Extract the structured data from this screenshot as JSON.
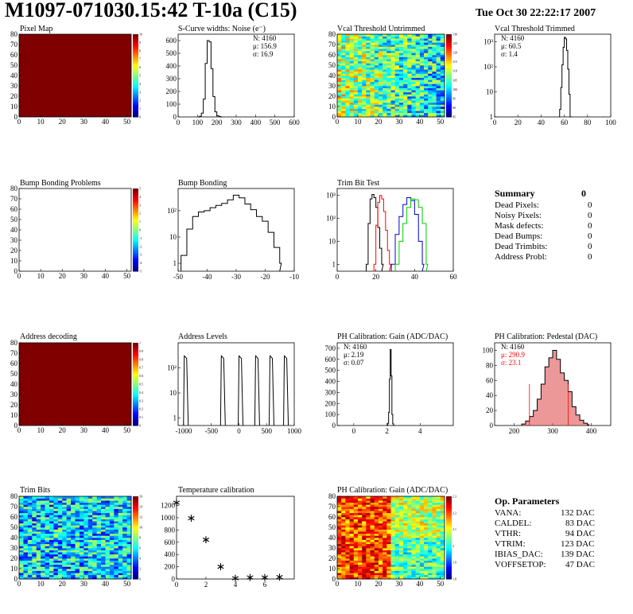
{
  "header": {
    "title": "M1097-071030.15:42 T-10a (C15)",
    "date": "Tue Oct 30 22:22:17 2007"
  },
  "colors": {
    "red": "#ff0000",
    "green": "#00cc00",
    "blue": "#0000cc",
    "fill_red": "#d44",
    "frame": "#000000"
  },
  "chart_data": [
    {
      "id": "pixel_map",
      "type": "heatmap",
      "title": "Pixel Map",
      "xlim": [
        0,
        52
      ],
      "ylim": [
        0,
        80
      ],
      "xticks": [
        0,
        10,
        20,
        30,
        40,
        50
      ],
      "yticks": [
        0,
        10,
        20,
        30,
        40,
        50,
        60,
        70,
        80
      ],
      "uniform_value": 10,
      "colorbar": {
        "range": [
          0,
          10
        ],
        "ticks": [
          "0",
          "1",
          "2",
          "3",
          "4",
          "5",
          "6",
          "7",
          "8",
          "9",
          "10"
        ]
      }
    },
    {
      "id": "scurve_noise",
      "type": "line",
      "title": "S-Curve widths: Noise (e⁻)",
      "xlim": [
        0,
        600
      ],
      "ylim": [
        0,
        650
      ],
      "xticks": [
        0,
        100,
        200,
        300,
        400,
        500,
        600
      ],
      "yticks": [
        0,
        100,
        200,
        300,
        400,
        500,
        600
      ],
      "stats": [
        "N: 4160",
        "μ: 156.9",
        "σ: 16.9"
      ],
      "series": [
        {
          "x": [
            100,
            110,
            120,
            130,
            140,
            150,
            160,
            170,
            180,
            190,
            200,
            210,
            220
          ],
          "y": [
            0,
            5,
            30,
            140,
            420,
            600,
            590,
            380,
            160,
            40,
            10,
            3,
            0
          ]
        }
      ]
    },
    {
      "id": "vcal_untrimmed",
      "type": "heatmap",
      "title": "Vcal Threshold Untrimmed",
      "xlim": [
        0,
        52
      ],
      "ylim": [
        0,
        80
      ],
      "xticks": [
        0,
        10,
        20,
        30,
        40,
        50
      ],
      "yticks": [
        0,
        10,
        20,
        30,
        40,
        50,
        60,
        70,
        80
      ],
      "colorbar": {
        "range": [
          85,
          130
        ],
        "ticks": [
          "85",
          "90",
          "95",
          "100",
          "105",
          "110",
          "115",
          "120",
          "125",
          "130"
        ]
      }
    },
    {
      "id": "vcal_trimmed",
      "type": "line",
      "title": "Vcal Threshold Trimmed",
      "xlim": [
        0,
        100
      ],
      "ylog": true,
      "ylim": [
        1,
        2000
      ],
      "xticks": [
        0,
        20,
        40,
        60,
        80,
        100
      ],
      "yticks": [
        "1",
        "10",
        "10²",
        "10³"
      ],
      "stats": [
        "N: 4160",
        "μ: 60.5",
        "σ: 1.4"
      ],
      "series": [
        {
          "x": [
            56,
            57,
            58,
            59,
            60,
            61,
            62,
            63,
            64,
            65
          ],
          "y": [
            2,
            15,
            120,
            600,
            1500,
            1300,
            450,
            80,
            8,
            1
          ]
        }
      ]
    },
    {
      "id": "bump_problems",
      "type": "heatmap",
      "title": "Bump Bonding Problems",
      "xlim": [
        0,
        52
      ],
      "ylim": [
        0,
        80
      ],
      "xticks": [
        0,
        10,
        20,
        30,
        40,
        50
      ],
      "yticks": [
        0,
        10,
        20,
        30,
        40,
        50,
        60,
        70,
        80
      ],
      "empty": true,
      "colorbar": {
        "range": [
          -5,
          5
        ],
        "ticks": [
          "-5",
          "-4",
          "-3",
          "-2",
          "-1",
          "0",
          "1",
          "2",
          "3",
          "4",
          "5"
        ]
      }
    },
    {
      "id": "bump_bonding",
      "type": "line",
      "title": "Bump Bonding",
      "xlim": [
        -50,
        -10
      ],
      "ylog": true,
      "ylim": [
        0.5,
        700
      ],
      "xticks": [
        -50,
        -40,
        -30,
        -20,
        -10
      ],
      "yticks": [
        "1",
        "10",
        "10²"
      ],
      "series": [
        {
          "x": [
            -49,
            -47,
            -45,
            -43,
            -41,
            -39,
            -37,
            -35,
            -33,
            -31,
            -29,
            -27,
            -25,
            -23,
            -21,
            -19,
            -17,
            -15
          ],
          "y": [
            2,
            20,
            60,
            90,
            100,
            130,
            160,
            190,
            260,
            390,
            310,
            180,
            110,
            60,
            40,
            15,
            4,
            1
          ]
        }
      ]
    },
    {
      "id": "trim_bit_test",
      "type": "line",
      "title": "Trim Bit Test",
      "xlim": [
        0,
        60
      ],
      "ylog": true,
      "ylim": [
        0.5,
        2000
      ],
      "xticks": [
        0,
        20,
        40,
        60
      ],
      "yticks": [
        "1",
        "10",
        "10²",
        "10³"
      ],
      "series": [
        {
          "color": "#000000",
          "x": [
            15,
            16,
            17,
            18,
            19,
            20,
            21,
            22,
            23
          ],
          "y": [
            1,
            60,
            700,
            1100,
            800,
            300,
            40,
            5,
            1
          ]
        },
        {
          "color": "#ff0000",
          "x": [
            19,
            20,
            21,
            22,
            23,
            24,
            25,
            26,
            27
          ],
          "y": [
            1,
            50,
            500,
            1000,
            700,
            200,
            30,
            4,
            1
          ]
        },
        {
          "color": "#0000cc",
          "x": [
            28,
            30,
            32,
            34,
            36,
            38,
            40,
            42,
            44
          ],
          "y": [
            1,
            20,
            120,
            400,
            800,
            600,
            150,
            10,
            1
          ]
        },
        {
          "color": "#00cc00",
          "x": [
            30,
            32,
            34,
            36,
            38,
            40,
            42,
            44,
            46
          ],
          "y": [
            1,
            10,
            60,
            300,
            700,
            650,
            300,
            60,
            1
          ]
        }
      ]
    },
    {
      "id": "address_decoding",
      "type": "heatmap",
      "title": "Address decoding",
      "xlim": [
        0,
        52
      ],
      "ylim": [
        0,
        80
      ],
      "xticks": [
        0,
        10,
        20,
        30,
        40,
        50
      ],
      "yticks": [
        0,
        10,
        20,
        30,
        40,
        50,
        60,
        70,
        80
      ],
      "uniform_value": 1,
      "colorbar": {
        "range": [
          0,
          1
        ],
        "ticks": [
          "0",
          "0.1",
          "0.2",
          "0.3",
          "0.4",
          "0.5",
          "0.6",
          "0.7",
          "0.8",
          "0.9",
          "1"
        ]
      }
    },
    {
      "id": "address_levels",
      "type": "line",
      "title": "Address Levels",
      "xlim": [
        -1100,
        1000
      ],
      "ylog": true,
      "ylim": [
        0.5,
        1000
      ],
      "xticks": [
        -1000,
        -500,
        0,
        500,
        1000
      ],
      "yticks": [
        "1",
        "10",
        "10²"
      ],
      "peaks": [
        -960,
        -290,
        30,
        330,
        590,
        850
      ],
      "peak_height": 300
    },
    {
      "id": "ph_gain",
      "type": "line",
      "title": "PH Calibration: Gain (ADC/DAC)",
      "xlim": [
        -1,
        6
      ],
      "ylim": [
        0,
        750
      ],
      "xticks": [
        0,
        2,
        4
      ],
      "yticks": [
        0,
        100,
        200,
        300,
        400,
        500,
        600,
        700
      ],
      "stats": [
        "N: 4160",
        "μ: 2.19",
        "σ: 0.07"
      ],
      "series": [
        {
          "x": [
            2.0,
            2.05,
            2.1,
            2.15,
            2.2,
            2.25,
            2.3,
            2.35,
            2.4
          ],
          "y": [
            0,
            20,
            120,
            420,
            690,
            450,
            100,
            15,
            0
          ]
        }
      ]
    },
    {
      "id": "ph_pedestal",
      "type": "line",
      "title": "PH Calibration: Pedestal (DAC)",
      "xlim": [
        150,
        450
      ],
      "ylim": [
        0,
        110
      ],
      "xticks": [
        200,
        300,
        400
      ],
      "yticks": [
        0,
        20,
        40,
        60,
        80,
        100
      ],
      "stats": [
        "N: 4160",
        "μ: 290.9",
        "σ: 23.1"
      ],
      "fit_lines": [
        240,
        340
      ],
      "series": [
        {
          "x": [
            220,
            230,
            240,
            250,
            260,
            270,
            280,
            290,
            300,
            310,
            320,
            330,
            340,
            350,
            360,
            370,
            380,
            390
          ],
          "y": [
            2,
            6,
            12,
            20,
            35,
            55,
            78,
            90,
            100,
            88,
            70,
            60,
            45,
            25,
            14,
            7,
            3,
            1
          ]
        }
      ]
    },
    {
      "id": "trim_bits",
      "type": "heatmap",
      "title": "Trim Bits",
      "xlim": [
        0,
        52
      ],
      "ylim": [
        0,
        80
      ],
      "xticks": [
        0,
        10,
        20,
        30,
        40,
        50
      ],
      "yticks": [
        0,
        10,
        20,
        30,
        40,
        50,
        60,
        70,
        80
      ],
      "colorbar": {
        "range": [
          0,
          16
        ],
        "ticks": [
          "0",
          "2",
          "4",
          "6",
          "8",
          "10",
          "12",
          "14",
          "16"
        ]
      }
    },
    {
      "id": "temp_calibration",
      "type": "scatter",
      "title": "Temperature calibration",
      "xlim": [
        0,
        8
      ],
      "ylim": [
        0,
        1350
      ],
      "xticks": [
        0,
        2,
        4,
        6
      ],
      "yticks": [
        0,
        200,
        400,
        600,
        800,
        1000,
        1200
      ],
      "series": [
        {
          "x": [
            0,
            1,
            2,
            3,
            4,
            5,
            6,
            7
          ],
          "y": [
            1250,
            1000,
            650,
            210,
            20,
            30,
            30,
            40
          ]
        }
      ]
    },
    {
      "id": "ph_gain_map",
      "type": "heatmap",
      "title": "PH Calibration: Gain (ADC/DAC)",
      "xlim": [
        0,
        52
      ],
      "ylim": [
        0,
        80
      ],
      "xticks": [
        0,
        10,
        20,
        30,
        40,
        50
      ],
      "yticks": [
        0,
        10,
        20,
        30,
        40,
        50,
        60,
        70,
        80
      ],
      "colorbar": {
        "range": [
          1.8,
          2.4
        ],
        "ticks": [
          "1.8",
          "1.9",
          "2",
          "2.1",
          "2.2",
          "2.3"
        ]
      }
    }
  ],
  "summary": {
    "title": "Summary",
    "value": "0",
    "rows": [
      {
        "label": "Dead Pixels:",
        "value": "0"
      },
      {
        "label": "Noisy Pixels:",
        "value": "0"
      },
      {
        "label": "Mask defects:",
        "value": "0"
      },
      {
        "label": "Dead Bumps:",
        "value": "0"
      },
      {
        "label": "Dead Trimbits:",
        "value": "0"
      },
      {
        "label": "Address Probl:",
        "value": "0"
      }
    ]
  },
  "op_params": {
    "title": "Op. Parameters",
    "rows": [
      {
        "label": "VANA:",
        "value": "132 DAC"
      },
      {
        "label": "CALDEL:",
        "value": "83 DAC"
      },
      {
        "label": "VTHR:",
        "value": "94 DAC"
      },
      {
        "label": "VTRIM:",
        "value": "123 DAC"
      },
      {
        "label": "IBIAS_DAC:",
        "value": "139 DAC"
      },
      {
        "label": "VOFFSETOP:",
        "value": "47 DAC"
      }
    ]
  }
}
